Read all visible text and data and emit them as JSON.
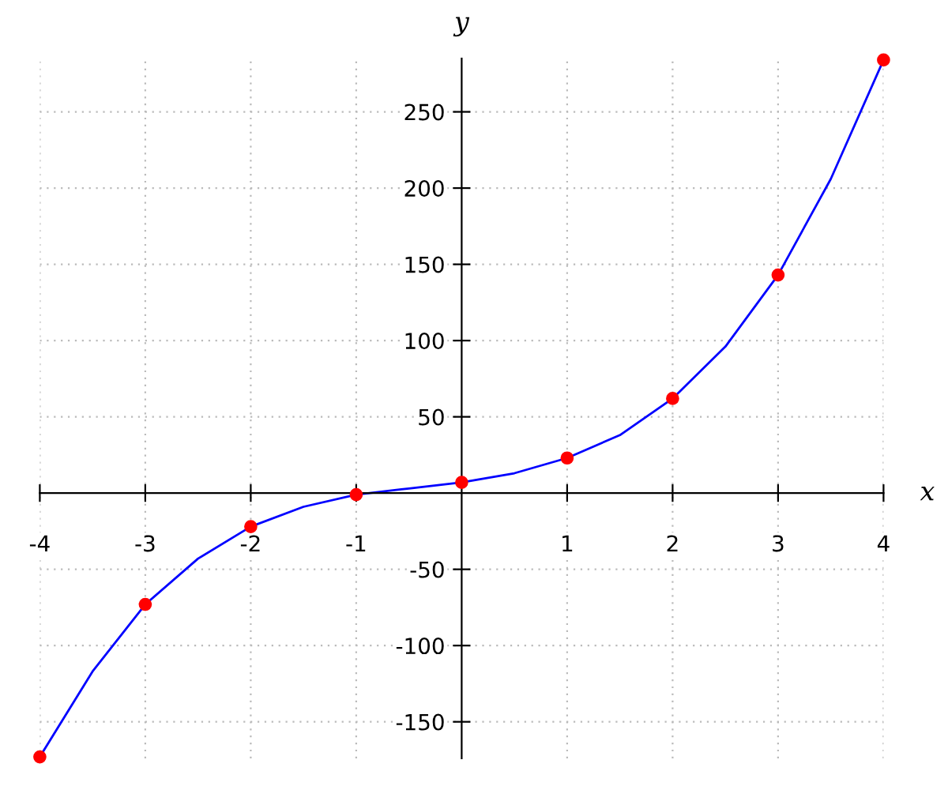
{
  "chart_data": {
    "type": "line",
    "xlabel": "x",
    "ylabel": "y",
    "x": [
      -4,
      -3,
      -2,
      -1,
      0,
      1,
      2,
      3,
      4
    ],
    "series": [
      {
        "color": "#0000ff",
        "x": [
          -4,
          -3.5,
          -3,
          -2.5,
          -2,
          -1.5,
          -1,
          -0.5,
          0,
          0.5,
          1,
          1.5,
          2,
          2.5,
          3,
          3.5,
          4
        ],
        "values": [
          -173,
          -117,
          -73,
          -43,
          -22,
          -9,
          -1,
          3,
          7,
          13,
          23,
          38,
          62,
          96,
          143,
          206,
          284
        ],
        "marker": "none"
      },
      {
        "type": "scatter",
        "color": "#ff0000",
        "values": [
          -173,
          -73,
          -22,
          -1,
          7,
          23,
          62,
          143,
          284
        ],
        "marker": "circle"
      }
    ],
    "xlim": [
      -4,
      4
    ],
    "ylim": [
      -174,
      285
    ],
    "xticks": [
      -4,
      -3,
      -2,
      -1,
      1,
      2,
      3,
      4
    ],
    "yticks": [
      -150,
      -100,
      -50,
      50,
      100,
      150,
      200,
      250
    ],
    "grid": true
  }
}
